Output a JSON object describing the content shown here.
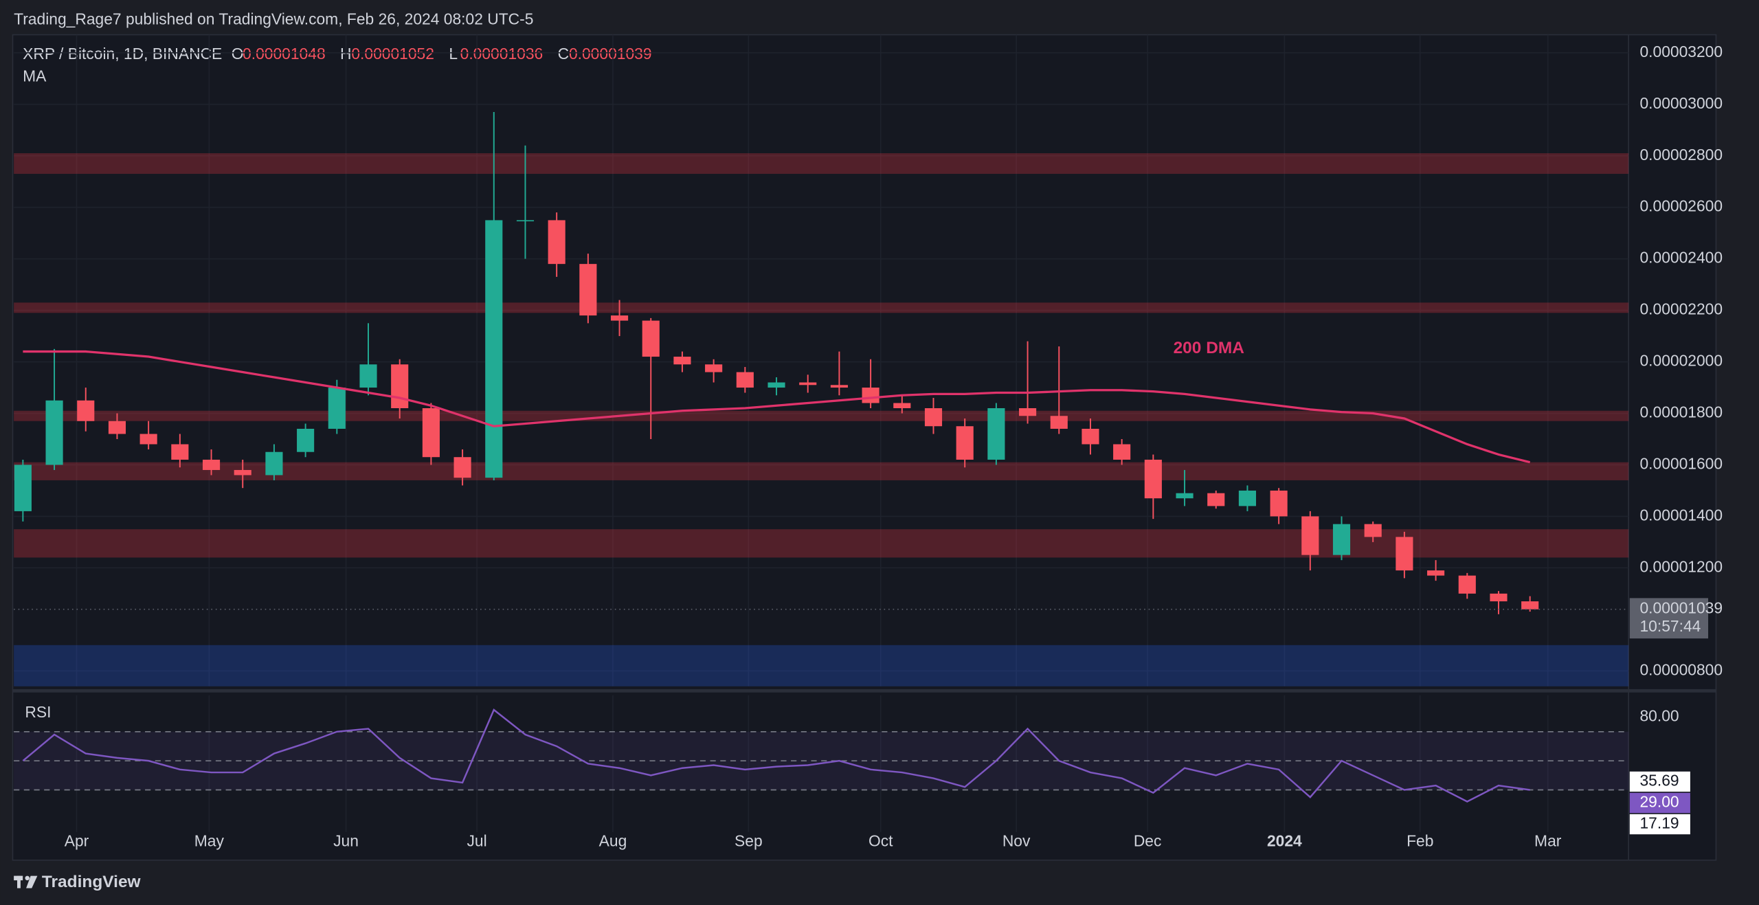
{
  "header": {
    "text": "Trading_Rage7 published on TradingView.com, Feb 26, 2024 08:02 UTC-5"
  },
  "footer": {
    "brand": "TradingView"
  },
  "chart_data": {
    "type": "candlestick",
    "title": "XRP / Bitcoin, 1D, BINANCE",
    "indicator_label": "MA",
    "last_bar": [
      {
        "label": "O",
        "value": 1.048e-05
      },
      {
        "label": "H",
        "value": 1.052e-05
      },
      {
        "label": "L",
        "value": 1.036e-05
      },
      {
        "label": "C",
        "value": 1.039e-05
      }
    ],
    "up_color": "#22ab94",
    "down_color": "#f7525f",
    "open": [
      1.42e-05,
      1.6e-05,
      1.85e-05,
      1.77e-05,
      1.72e-05,
      1.68e-05,
      1.62e-05,
      1.58e-05,
      1.56e-05,
      1.65e-05,
      1.74e-05,
      1.9e-05,
      1.99e-05,
      1.82e-05,
      1.63e-05,
      1.55e-05,
      2.55e-05,
      2.55e-05,
      2.38e-05,
      2.18e-05,
      2.16e-05,
      2.02e-05,
      1.99e-05,
      1.96e-05,
      1.9e-05,
      1.92e-05,
      1.91e-05,
      1.9e-05,
      1.84e-05,
      1.82e-05,
      1.75e-05,
      1.62e-05,
      1.82e-05,
      1.79e-05,
      1.74e-05,
      1.68e-05,
      1.62e-05,
      1.47e-05,
      1.49e-05,
      1.44e-05,
      1.5e-05,
      1.4e-05,
      1.25e-05,
      1.37e-05,
      1.32e-05,
      1.19e-05,
      1.17e-05,
      1.1e-05,
      1.07e-05
    ],
    "high": [
      1.62e-05,
      2.05e-05,
      1.9e-05,
      1.8e-05,
      1.77e-05,
      1.72e-05,
      1.66e-05,
      1.62e-05,
      1.68e-05,
      1.76e-05,
      1.93e-05,
      2.15e-05,
      2.01e-05,
      1.84e-05,
      1.66e-05,
      2.97e-05,
      2.84e-05,
      2.58e-05,
      2.42e-05,
      2.24e-05,
      2.17e-05,
      2.04e-05,
      2.01e-05,
      1.98e-05,
      1.94e-05,
      1.95e-05,
      2.04e-05,
      2.01e-05,
      1.87e-05,
      1.86e-05,
      1.78e-05,
      1.84e-05,
      2.08e-05,
      2.06e-05,
      1.78e-05,
      1.7e-05,
      1.64e-05,
      1.58e-05,
      1.5e-05,
      1.52e-05,
      1.51e-05,
      1.42e-05,
      1.4e-05,
      1.38e-05,
      1.34e-05,
      1.23e-05,
      1.18e-05,
      1.11e-05,
      1.09e-05
    ],
    "low": [
      1.38e-05,
      1.58e-05,
      1.73e-05,
      1.7e-05,
      1.66e-05,
      1.59e-05,
      1.56e-05,
      1.51e-05,
      1.54e-05,
      1.63e-05,
      1.72e-05,
      1.87e-05,
      1.78e-05,
      1.6e-05,
      1.52e-05,
      1.54e-05,
      2.4e-05,
      2.33e-05,
      2.15e-05,
      2.1e-05,
      1.7e-05,
      1.96e-05,
      1.92e-05,
      1.88e-05,
      1.87e-05,
      1.88e-05,
      1.87e-05,
      1.82e-05,
      1.8e-05,
      1.72e-05,
      1.59e-05,
      1.6e-05,
      1.76e-05,
      1.72e-05,
      1.64e-05,
      1.6e-05,
      1.39e-05,
      1.44e-05,
      1.43e-05,
      1.42e-05,
      1.37e-05,
      1.19e-05,
      1.23e-05,
      1.3e-05,
      1.16e-05,
      1.15e-05,
      1.08e-05,
      1.02e-05,
      1.03e-05
    ],
    "close": [
      1.6e-05,
      1.85e-05,
      1.77e-05,
      1.72e-05,
      1.68e-05,
      1.62e-05,
      1.58e-05,
      1.56e-05,
      1.65e-05,
      1.74e-05,
      1.9e-05,
      1.99e-05,
      1.82e-05,
      1.63e-05,
      1.55e-05,
      2.55e-05,
      2.55e-05,
      2.38e-05,
      2.18e-05,
      2.16e-05,
      2.02e-05,
      1.99e-05,
      1.96e-05,
      1.9e-05,
      1.92e-05,
      1.91e-05,
      1.9e-05,
      1.84e-05,
      1.82e-05,
      1.75e-05,
      1.62e-05,
      1.82e-05,
      1.79e-05,
      1.74e-05,
      1.68e-05,
      1.62e-05,
      1.47e-05,
      1.49e-05,
      1.44e-05,
      1.5e-05,
      1.4e-05,
      1.25e-05,
      1.37e-05,
      1.32e-05,
      1.19e-05,
      1.17e-05,
      1.1e-05,
      1.07e-05,
      1.039e-05
    ],
    "ma": {
      "label": "200 DMA",
      "color": "#e0336b",
      "values": [
        2.04e-05,
        2.04e-05,
        2.04e-05,
        2.03e-05,
        2.02e-05,
        2e-05,
        1.98e-05,
        1.96e-05,
        1.94e-05,
        1.92e-05,
        1.9e-05,
        1.88e-05,
        1.86e-05,
        1.83e-05,
        1.79e-05,
        1.75e-05,
        1.76e-05,
        1.77e-05,
        1.78e-05,
        1.79e-05,
        1.8e-05,
        1.81e-05,
        1.815e-05,
        1.82e-05,
        1.83e-05,
        1.84e-05,
        1.85e-05,
        1.86e-05,
        1.87e-05,
        1.875e-05,
        1.875e-05,
        1.88e-05,
        1.88e-05,
        1.885e-05,
        1.89e-05,
        1.89e-05,
        1.885e-05,
        1.875e-05,
        1.86e-05,
        1.845e-05,
        1.83e-05,
        1.815e-05,
        1.805e-05,
        1.8e-05,
        1.78e-05,
        1.73e-05,
        1.68e-05,
        1.64e-05,
        1.61e-05
      ]
    },
    "zones": [
      {
        "range": [
          2.73e-05,
          2.81e-05
        ],
        "color": "rgba(242,54,69,0.28)"
      },
      {
        "range": [
          2.19e-05,
          2.23e-05
        ],
        "color": "rgba(242,54,69,0.28)"
      },
      {
        "range": [
          1.77e-05,
          1.81e-05
        ],
        "color": "rgba(242,54,69,0.28)"
      },
      {
        "range": [
          1.54e-05,
          1.61e-05
        ],
        "color": "rgba(242,54,69,0.28)"
      },
      {
        "range": [
          1.24e-05,
          1.35e-05
        ],
        "color": "rgba(242,54,69,0.28)"
      },
      {
        "range": [
          7.4e-06,
          9e-06
        ],
        "color": "rgba(41,98,255,0.25)"
      }
    ],
    "xlim": [
      -0.29,
      51.14
    ],
    "xticks": [
      {
        "value": 1.71,
        "label": "Apr"
      },
      {
        "value": 5.93,
        "label": "May"
      },
      {
        "value": 10.29,
        "label": "Jun"
      },
      {
        "value": 14.46,
        "label": "Jul"
      },
      {
        "value": 18.79,
        "label": "Aug"
      },
      {
        "value": 23.11,
        "label": "Sep"
      },
      {
        "value": 27.32,
        "label": "Oct"
      },
      {
        "value": 31.64,
        "label": "Nov"
      },
      {
        "value": 35.82,
        "label": "Dec"
      },
      {
        "value": 40.18,
        "label": "2024"
      },
      {
        "value": 44.5,
        "label": "Feb"
      },
      {
        "value": 48.57,
        "label": "Mar"
      }
    ],
    "ylim": [
      7.4e-06,
      3.27e-05
    ],
    "yticks": [
      {
        "value": 3.2e-05,
        "label": "0.00003200"
      },
      {
        "value": 3e-05,
        "label": "0.00003000"
      },
      {
        "value": 2.8e-05,
        "label": "0.00002800"
      },
      {
        "value": 2.6e-05,
        "label": "0.00002600"
      },
      {
        "value": 2.4e-05,
        "label": "0.00002400"
      },
      {
        "value": 2.2e-05,
        "label": "0.00002200"
      },
      {
        "value": 2e-05,
        "label": "0.00002000"
      },
      {
        "value": 1.8e-05,
        "label": "0.00001800"
      },
      {
        "value": 1.6e-05,
        "label": "0.00001600"
      },
      {
        "value": 1.4e-05,
        "label": "0.00001400"
      },
      {
        "value": 1.2e-05,
        "label": "0.00001200"
      },
      {
        "value": 8e-06,
        "label": "0.00000800"
      }
    ],
    "grid": true,
    "price_tag": {
      "value": 1.039e-05,
      "countdown": "10:57:44"
    },
    "rsi": {
      "type": "line",
      "label": "RSI",
      "color": "#7e57c2",
      "values": [
        50,
        68,
        55,
        52,
        50,
        44,
        42,
        42,
        55,
        62,
        70,
        72,
        52,
        38,
        35,
        85,
        68,
        60,
        48,
        45,
        40,
        45,
        47,
        44,
        46,
        47,
        50,
        44,
        42,
        38,
        32,
        50,
        72,
        50,
        42,
        38,
        28,
        45,
        40,
        48,
        44,
        25,
        50,
        40,
        30,
        33,
        22,
        33,
        30
      ],
      "ylim": [
        1,
        95
      ],
      "yticks": [
        {
          "value": 80,
          "label": "80.00"
        }
      ],
      "levels": [
        70,
        50,
        30
      ],
      "markers": [
        {
          "value": 35.69,
          "color": "#ffffff"
        },
        {
          "value": 29,
          "label": "29.00",
          "color": "#7e57c2"
        },
        {
          "value": 17.19,
          "color": "#ffffff"
        }
      ]
    }
  }
}
